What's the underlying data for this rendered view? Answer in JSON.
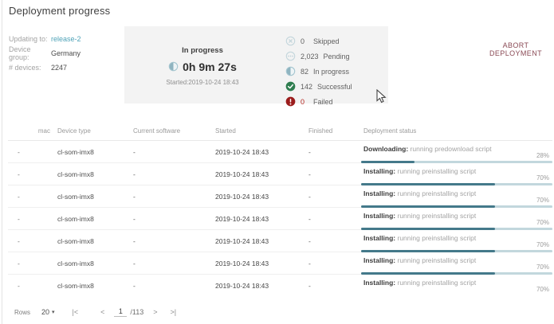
{
  "page": {
    "title": "Deployment progress"
  },
  "info": {
    "updating_label": "Updating to:",
    "updating_value": "release-2",
    "group_label": "Device group:",
    "group_value": "Germany",
    "devices_label": "# devices:",
    "devices_value": "2247"
  },
  "progress_panel": {
    "state": "In progress",
    "elapsed": "0h 9m 27s",
    "started": "Started:2019-10-24 18:43"
  },
  "status_counts": [
    {
      "icon": "skipped-icon",
      "count": "0",
      "label": "Skipped"
    },
    {
      "icon": "pending-icon",
      "count": "2,023",
      "label": "Pending"
    },
    {
      "icon": "inprogress-icon",
      "count": "82",
      "label": "In progress"
    },
    {
      "icon": "success-icon",
      "count": "142",
      "label": "Successful"
    },
    {
      "icon": "failed-icon",
      "count": "0",
      "label": "Failed",
      "count_color": "#b3261e"
    }
  ],
  "abort_button": {
    "label": "ABORT DEPLOYMENT"
  },
  "table": {
    "headers": [
      "mac",
      "Device type",
      "Current software",
      "Started",
      "Finished",
      "Deployment status"
    ],
    "rows": [
      {
        "mac": "-",
        "device_type": "cl-som-imx8",
        "current_software": "-",
        "started": "2019-10-24 18:43",
        "finished": "-",
        "status_phase": "Downloading:",
        "status_detail": "running predownload script",
        "percent": 28,
        "show_bar": true
      },
      {
        "mac": "-",
        "device_type": "cl-som-imx8",
        "current_software": "-",
        "started": "2019-10-24 18:43",
        "finished": "-",
        "status_phase": "Installing:",
        "status_detail": "running preinstalling script",
        "percent": 70,
        "show_bar": true
      },
      {
        "mac": "-",
        "device_type": "cl-som-imx8",
        "current_software": "-",
        "started": "2019-10-24 18:43",
        "finished": "-",
        "status_phase": "Installing:",
        "status_detail": "running preinstalling script",
        "percent": 70,
        "show_bar": true
      },
      {
        "mac": "-",
        "device_type": "cl-som-imx8",
        "current_software": "-",
        "started": "2019-10-24 18:43",
        "finished": "-",
        "status_phase": "Installing:",
        "status_detail": "running preinstalling script",
        "percent": 70,
        "show_bar": true
      },
      {
        "mac": "-",
        "device_type": "cl-som-imx8",
        "current_software": "-",
        "started": "2019-10-24 18:43",
        "finished": "-",
        "status_phase": "Installing:",
        "status_detail": "running preinstalling script",
        "percent": 70,
        "show_bar": true
      },
      {
        "mac": "-",
        "device_type": "cl-som-imx8",
        "current_software": "-",
        "started": "2019-10-24 18:43",
        "finished": "-",
        "status_phase": "Installing:",
        "status_detail": "running preinstalling script",
        "percent": 70,
        "show_bar": true
      },
      {
        "mac": "-",
        "device_type": "cl-som-imx8",
        "current_software": "-",
        "started": "2019-10-24 18:43",
        "finished": "-",
        "status_phase": "Installing:",
        "status_detail": "running preinstalling script",
        "percent": 70,
        "show_bar": false
      }
    ]
  },
  "pagination": {
    "rows_label": "Rows",
    "page_size": "20",
    "first": "|<",
    "prev": "<",
    "page": "1",
    "total": "/113",
    "next": ">",
    "last": ">|"
  },
  "colors": {
    "link": "#4fa3b8",
    "bar_fill": "#44798a",
    "bar_track": "#c2d7dd",
    "success": "#2e7d4f",
    "failed": "#9b1c1c",
    "abort_text": "#8a4a55",
    "panel_bg": "#f3f3f3"
  }
}
